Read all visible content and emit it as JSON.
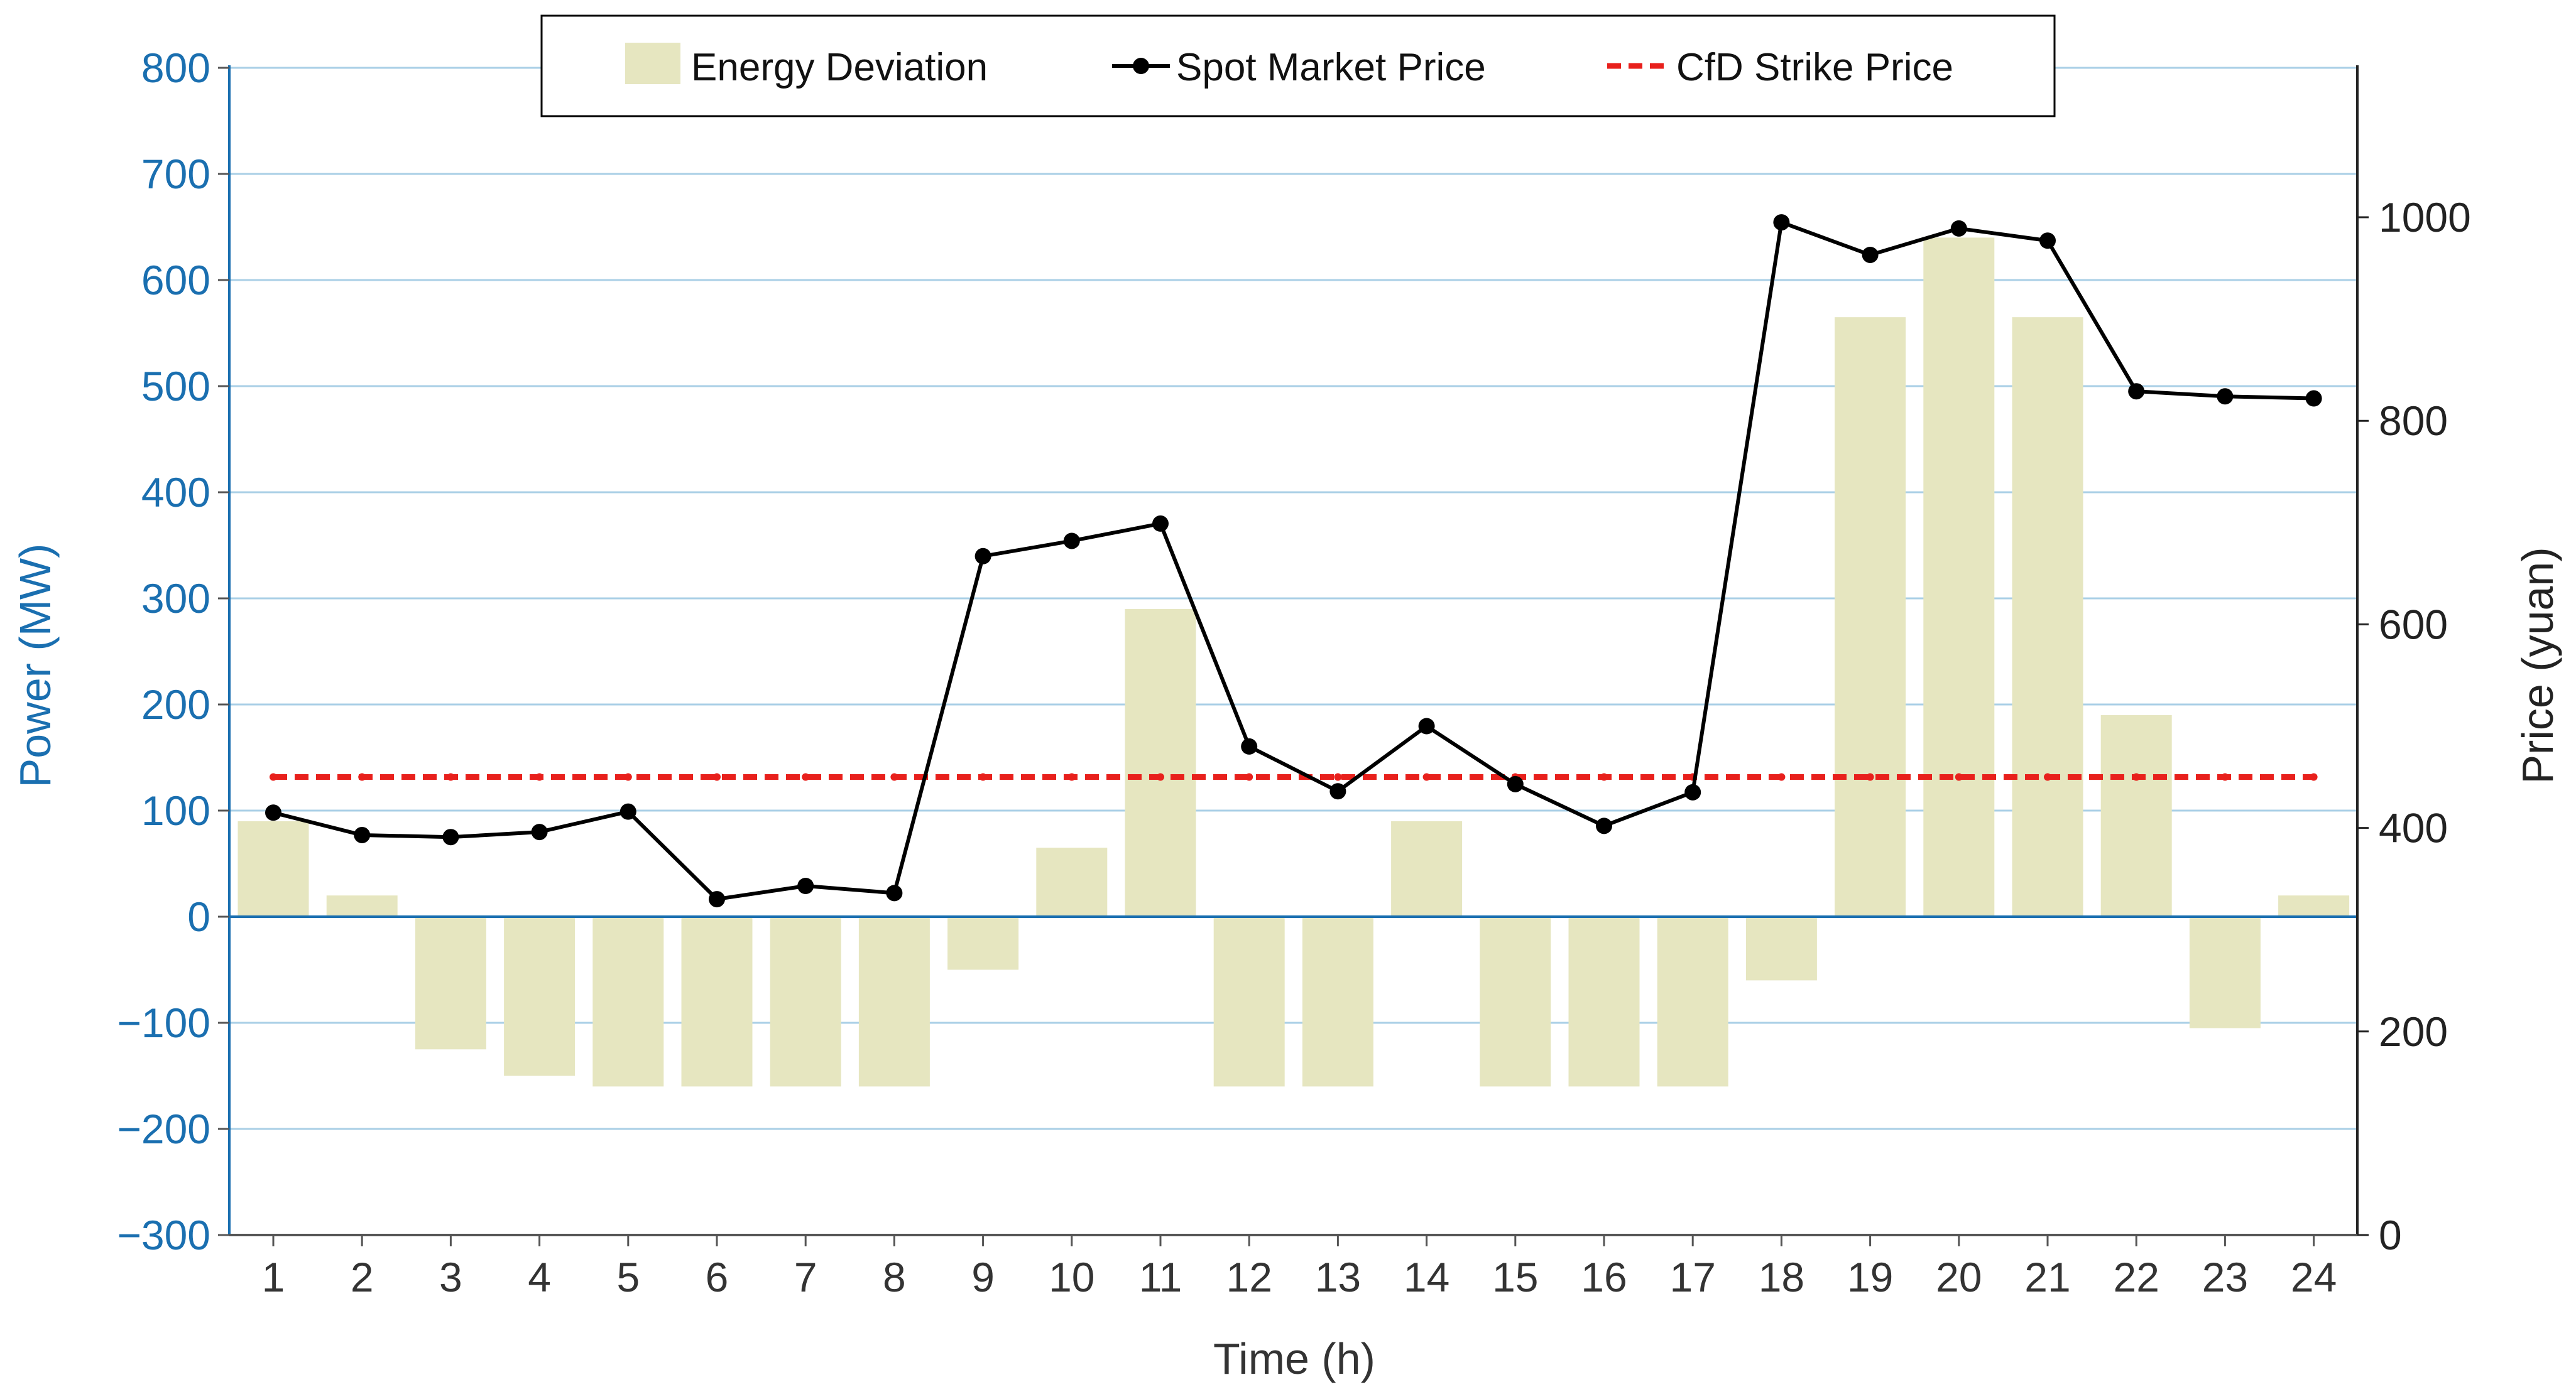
{
  "chart_data": {
    "type": "bar",
    "categories": [
      "1",
      "2",
      "3",
      "4",
      "5",
      "6",
      "7",
      "8",
      "9",
      "10",
      "11",
      "12",
      "13",
      "14",
      "15",
      "16",
      "17",
      "18",
      "19",
      "20",
      "21",
      "22",
      "23",
      "24"
    ],
    "series": [
      {
        "name": "Energy Deviation",
        "type": "bar",
        "axis": "left",
        "color": "#e6e6c0",
        "values": [
          90,
          20,
          -125,
          -150,
          -160,
          -160,
          -160,
          -160,
          -50,
          65,
          290,
          -160,
          -160,
          90,
          -160,
          -160,
          -160,
          -60,
          565,
          640,
          565,
          190,
          -105,
          20
        ]
      },
      {
        "name": "Spot Market Price",
        "type": "line",
        "axis": "right",
        "color": "#000000",
        "marker": "circle",
        "values": [
          415,
          393,
          391,
          396,
          416,
          330,
          343,
          336,
          667,
          682,
          699,
          480,
          436,
          500,
          443,
          402,
          435,
          995,
          963,
          989,
          977,
          829,
          824,
          822
        ]
      },
      {
        "name": "CfD Strike Price",
        "type": "line",
        "axis": "right",
        "color": "#e8201c",
        "style": "dashed",
        "values": [
          450,
          450,
          450,
          450,
          450,
          450,
          450,
          450,
          450,
          450,
          450,
          450,
          450,
          450,
          450,
          450,
          450,
          450,
          450,
          450,
          450,
          450,
          450,
          450
        ]
      }
    ],
    "xlabel": "Time (h)",
    "ylabel": "Power (MW)",
    "y2label": "Price (yuan)",
    "ylim": [
      -300,
      800
    ],
    "y2lim": [
      0,
      1150
    ],
    "yticks": [
      "800",
      "700",
      "600",
      "500",
      "400",
      "300",
      "200",
      "100",
      "0",
      "−100",
      "−200",
      "−300"
    ],
    "y2ticks": [
      "1000",
      "800",
      "600",
      "400",
      "200",
      "0"
    ],
    "grid": true,
    "legend_position": "top-center",
    "colors": {
      "left_axis": "#1a6fb0",
      "right_axis": "#222222",
      "grid": "#a9cfe6",
      "zero_line": "#1a6fb0",
      "bar": "#e6e6c0",
      "spot": "#000000",
      "cfd": "#e8201c"
    }
  }
}
